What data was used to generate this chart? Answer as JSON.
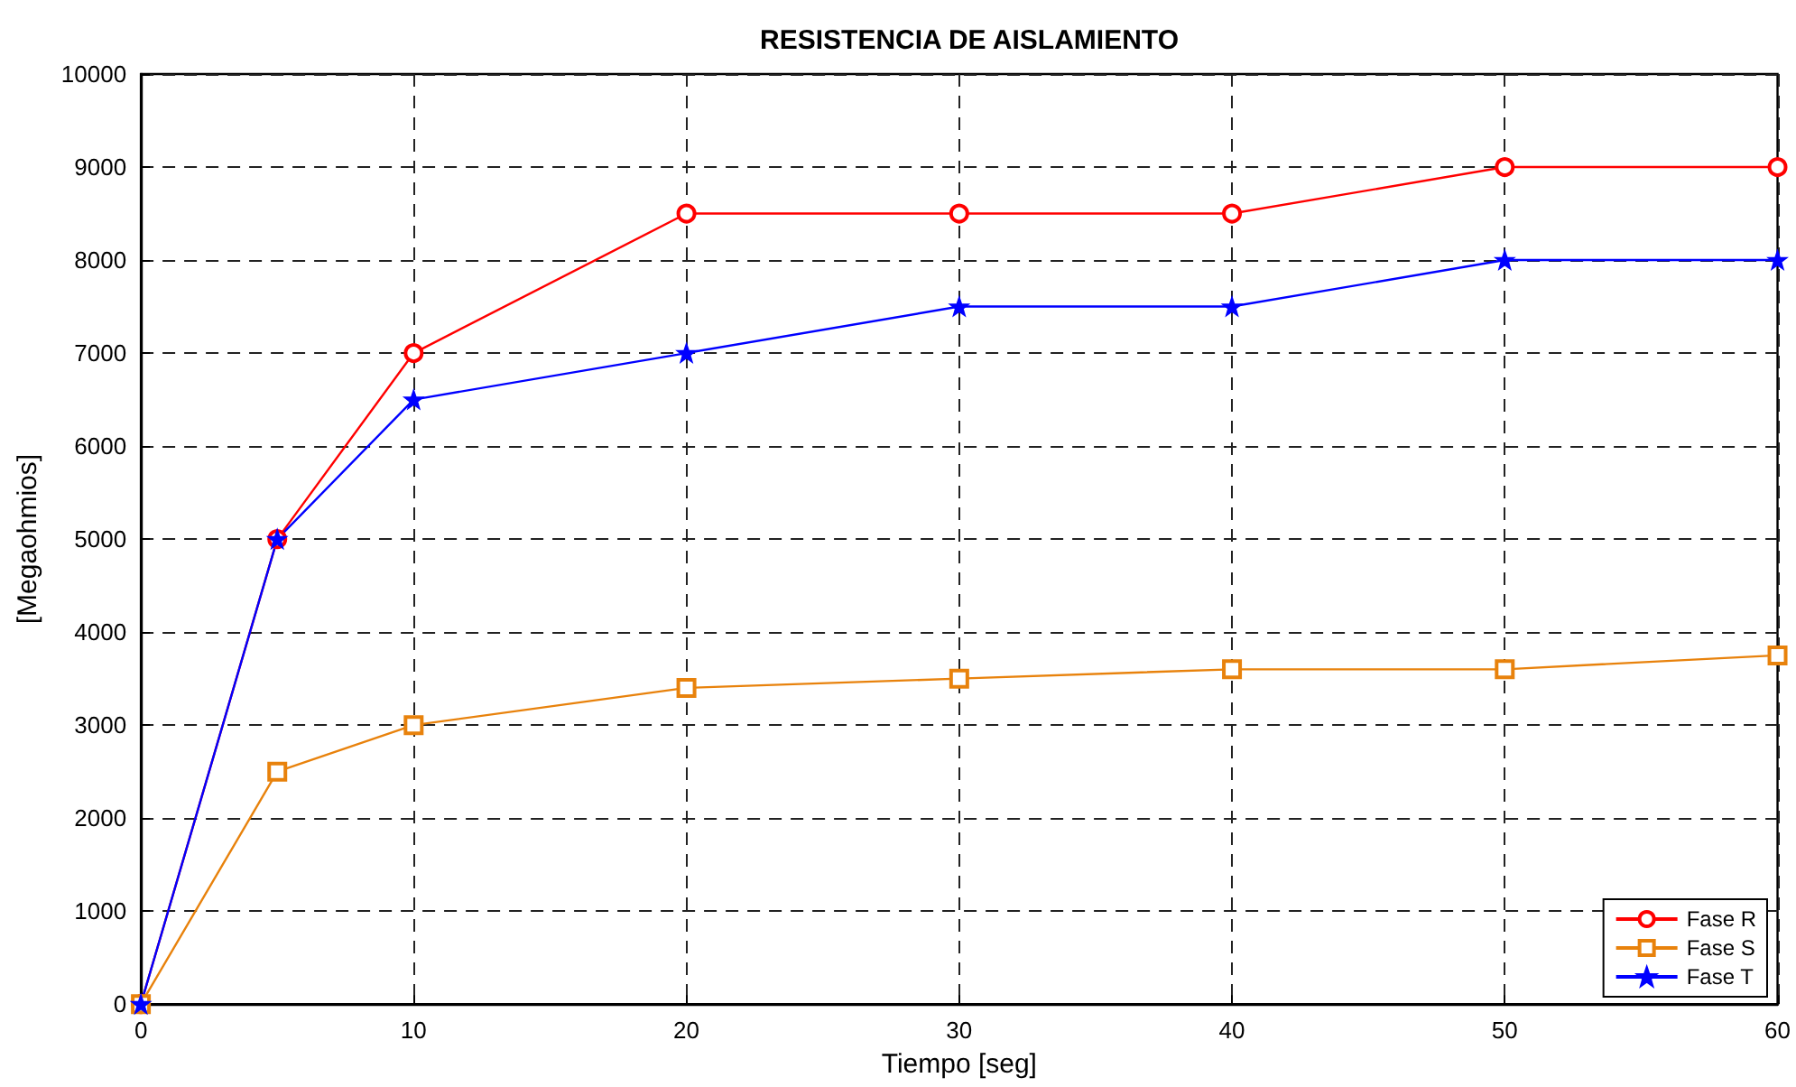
{
  "chart_data": {
    "type": "line",
    "title": "RESISTENCIA DE AISLAMIENTO",
    "xlabel": "Tiempo [seg]",
    "ylabel": "[Megaohmios]",
    "x": [
      0,
      5,
      10,
      20,
      30,
      40,
      50,
      60
    ],
    "series": [
      {
        "name": "Fase R",
        "color": "#ff0000",
        "marker": "circle",
        "values": [
          0,
          5000,
          7000,
          8500,
          8500,
          8500,
          9000,
          9000
        ]
      },
      {
        "name": "Fase S",
        "color": "#e8820c",
        "marker": "square",
        "values": [
          0,
          2500,
          3000,
          3400,
          3500,
          3600,
          3600,
          3750
        ]
      },
      {
        "name": "Fase T",
        "color": "#0000ff",
        "marker": "star",
        "values": [
          0,
          5000,
          6500,
          7000,
          7500,
          7500,
          8000,
          8000
        ]
      }
    ],
    "xlim": [
      0,
      60
    ],
    "xticks": [
      0,
      10,
      20,
      30,
      40,
      50,
      60
    ],
    "ylim": [
      0,
      10000
    ],
    "yticks": [
      0,
      1000,
      2000,
      3000,
      4000,
      5000,
      6000,
      7000,
      8000,
      9000,
      10000
    ],
    "grid": true,
    "legend": "bottom right",
    "line_style": "solid"
  }
}
